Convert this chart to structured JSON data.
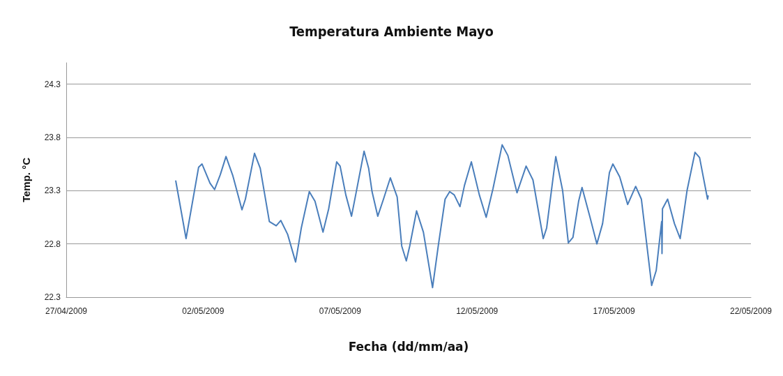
{
  "chart_data": {
    "type": "line",
    "title": "Temperatura Ambiente Mayo",
    "xlabel": "Fecha (dd/mm/aa)",
    "ylabel": "Temp. °C",
    "xlim": [
      "2009-04-27",
      "2009-05-22"
    ],
    "xticks": [
      {
        "value": "2009-04-27",
        "label": "27/04/2009"
      },
      {
        "value": "2009-05-02",
        "label": "02/05/2009"
      },
      {
        "value": "2009-05-07",
        "label": "07/05/2009"
      },
      {
        "value": "2009-05-12",
        "label": "12/05/2009"
      },
      {
        "value": "2009-05-17",
        "label": "17/05/2009"
      },
      {
        "value": "2009-05-22",
        "label": "22/05/2009"
      }
    ],
    "ylim": [
      22.3,
      24.5
    ],
    "yticks": [
      22.3,
      22.8,
      23.3,
      23.8,
      24.3
    ],
    "grid": "y",
    "marker": "none",
    "line_style": "solid",
    "x": [
      "2009-05-01T00:00",
      "2009-05-01T09:00",
      "2009-05-01T20:00",
      "2009-05-01T23:00",
      "2009-05-02T06:00",
      "2009-05-02T10:00",
      "2009-05-02T15:00",
      "2009-05-02T20:00",
      "2009-05-03T02:00",
      "2009-05-03T10:00",
      "2009-05-03T13:00",
      "2009-05-03T21:00",
      "2009-05-04T02:00",
      "2009-05-04T10:00",
      "2009-05-04T16:00",
      "2009-05-04T20:00",
      "2009-05-05T02:00",
      "2009-05-05T09:00",
      "2009-05-05T14:00",
      "2009-05-05T21:00",
      "2009-05-06T02:00",
      "2009-05-06T09:00",
      "2009-05-06T14:00",
      "2009-05-06T21:00",
      "2009-05-07T00:00",
      "2009-05-07T05:00",
      "2009-05-07T10:00",
      "2009-05-07T14:00",
      "2009-05-07T21:00",
      "2009-05-08T01:00",
      "2009-05-08T04:00",
      "2009-05-08T09:00",
      "2009-05-08T14:00",
      "2009-05-08T20:00",
      "2009-05-09T02:00",
      "2009-05-09T06:00",
      "2009-05-09T10:00",
      "2009-05-09T13:00",
      "2009-05-09T19:00",
      "2009-05-10T01:00",
      "2009-05-10T09:00",
      "2009-05-10T14:00",
      "2009-05-10T20:00",
      "2009-05-11T00:00",
      "2009-05-11T04:00",
      "2009-05-11T09:00",
      "2009-05-11T13:00",
      "2009-05-11T19:00",
      "2009-05-12T02:00",
      "2009-05-12T08:00",
      "2009-05-12T14:00",
      "2009-05-12T22:00",
      "2009-05-13T03:00",
      "2009-05-13T11:00",
      "2009-05-13T19:00",
      "2009-05-14T01:00",
      "2009-05-14T10:00",
      "2009-05-14T13:00",
      "2009-05-14T21:00",
      "2009-05-15T03:00",
      "2009-05-15T08:00",
      "2009-05-15T12:00",
      "2009-05-15T17:00",
      "2009-05-15T20:00",
      "2009-05-16T03:00",
      "2009-05-16T09:00",
      "2009-05-16T14:00",
      "2009-05-16T20:00",
      "2009-05-16T23:00",
      "2009-05-17T05:00",
      "2009-05-17T12:00",
      "2009-05-17T19:00",
      "2009-05-18T00:00",
      "2009-05-18T09:00",
      "2009-05-18T13:00",
      "2009-05-18T17:45",
      "2009-05-18T18:05",
      "2009-05-18T18:30",
      "2009-05-18T23:00",
      "2009-05-19T05:00",
      "2009-05-19T10:00",
      "2009-05-19T16:00",
      "2009-05-19T23:00",
      "2009-05-20T03:00",
      "2009-05-20T10:00",
      "2009-05-20T10:30"
    ],
    "series": [
      {
        "color": "#4a7ebb",
        "values": [
          23.39,
          22.85,
          23.52,
          23.55,
          23.37,
          23.31,
          23.45,
          23.62,
          23.44,
          23.12,
          23.22,
          23.65,
          23.51,
          23.01,
          22.97,
          23.02,
          22.89,
          22.63,
          22.95,
          23.29,
          23.2,
          22.91,
          23.13,
          23.57,
          23.53,
          23.26,
          23.06,
          23.28,
          23.67,
          23.51,
          23.29,
          23.06,
          23.22,
          23.42,
          23.24,
          22.78,
          22.64,
          22.78,
          23.11,
          22.91,
          22.39,
          22.78,
          23.22,
          23.29,
          23.26,
          23.15,
          23.35,
          23.57,
          23.26,
          23.05,
          23.32,
          23.73,
          23.63,
          23.28,
          23.53,
          23.4,
          22.85,
          22.95,
          23.62,
          23.3,
          22.81,
          22.86,
          23.2,
          23.33,
          23.05,
          22.8,
          22.99,
          23.47,
          23.55,
          23.43,
          23.17,
          23.34,
          23.22,
          22.41,
          22.55,
          23.01,
          22.71,
          23.13,
          23.22,
          22.99,
          22.85,
          23.3,
          23.66,
          23.61,
          23.22,
          23.25
        ]
      }
    ]
  }
}
